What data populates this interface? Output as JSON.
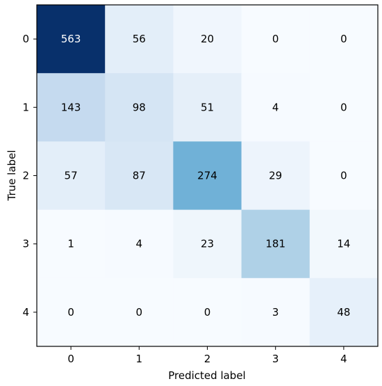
{
  "chart_data": {
    "type": "heatmap",
    "title": "",
    "xlabel": "Predicted label",
    "ylabel": "True label",
    "x_categories": [
      "0",
      "1",
      "2",
      "3",
      "4"
    ],
    "y_categories": [
      "0",
      "1",
      "2",
      "3",
      "4"
    ],
    "values": [
      [
        563,
        56,
        20,
        0,
        0
      ],
      [
        143,
        98,
        51,
        4,
        0
      ],
      [
        57,
        87,
        274,
        29,
        0
      ],
      [
        1,
        4,
        23,
        181,
        14
      ],
      [
        0,
        0,
        0,
        3,
        48
      ]
    ],
    "colormap": "Blues",
    "colors": {
      "low": "#f7fbff",
      "high": "#08306b",
      "text_dark": "#000000",
      "text_light": "#ffffff"
    },
    "grid": false,
    "legend": "none"
  }
}
